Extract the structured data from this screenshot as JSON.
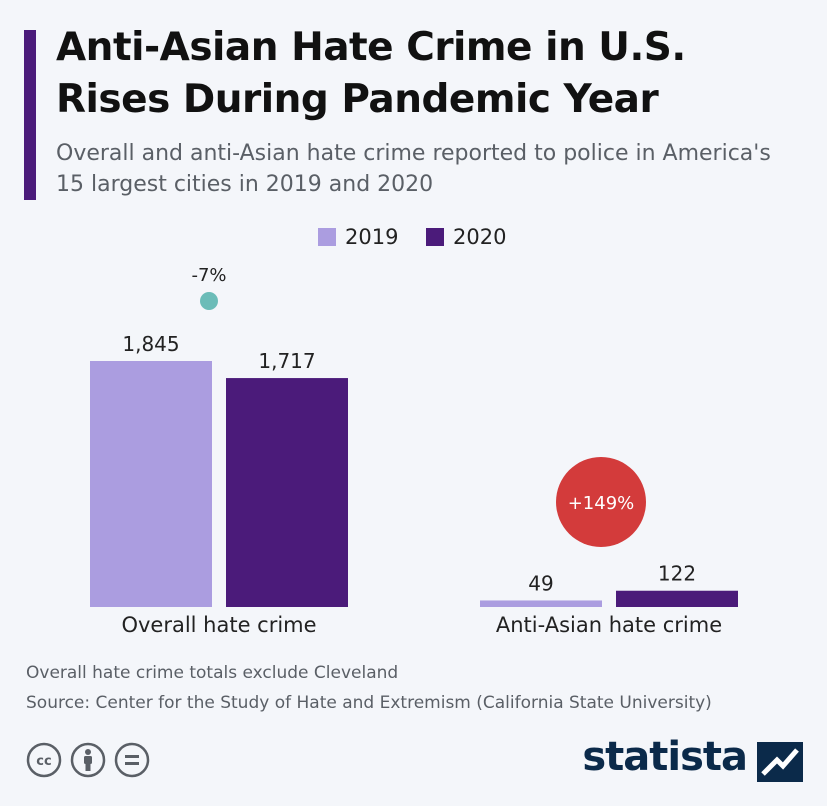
{
  "header": {
    "title": "Anti-Asian Hate Crime in U.S. Rises During Pandemic Year",
    "subtitle": "Overall and anti-Asian hate crime reported to police in America's 15 largest cities in 2019 and 2020"
  },
  "colors": {
    "accent_bar": "#4b1b7a",
    "series_2019": "#ab9de0",
    "series_2020": "#4b1b7a",
    "change_negative": "#6bbcb8",
    "change_positive": "#d33b3b",
    "brand": "#0b2a4a"
  },
  "chart_data": {
    "type": "bar",
    "categories": [
      "Overall hate crime",
      "Anti-Asian hate crime"
    ],
    "series": [
      {
        "name": "2019",
        "values": [
          1845,
          49
        ]
      },
      {
        "name": "2020",
        "values": [
          1717,
          122
        ]
      }
    ],
    "value_labels": [
      [
        "1,845",
        "49"
      ],
      [
        "1,717",
        "122"
      ]
    ],
    "changes": [
      {
        "label": "-7%",
        "direction": "negative",
        "style": "small-dot"
      },
      {
        "label": "+149%",
        "direction": "positive",
        "style": "large-circle"
      }
    ],
    "ylim": [
      0,
      1845
    ],
    "grid": false,
    "legend": "top-center"
  },
  "footer": {
    "note": "Overall hate crime totals exclude Cleveland",
    "source": "Source: Center for the Study of Hate and Extremism (California State University)",
    "brand": "statista",
    "license_icons": [
      "creative-commons-icon",
      "attribution-icon",
      "no-derivatives-icon"
    ]
  }
}
